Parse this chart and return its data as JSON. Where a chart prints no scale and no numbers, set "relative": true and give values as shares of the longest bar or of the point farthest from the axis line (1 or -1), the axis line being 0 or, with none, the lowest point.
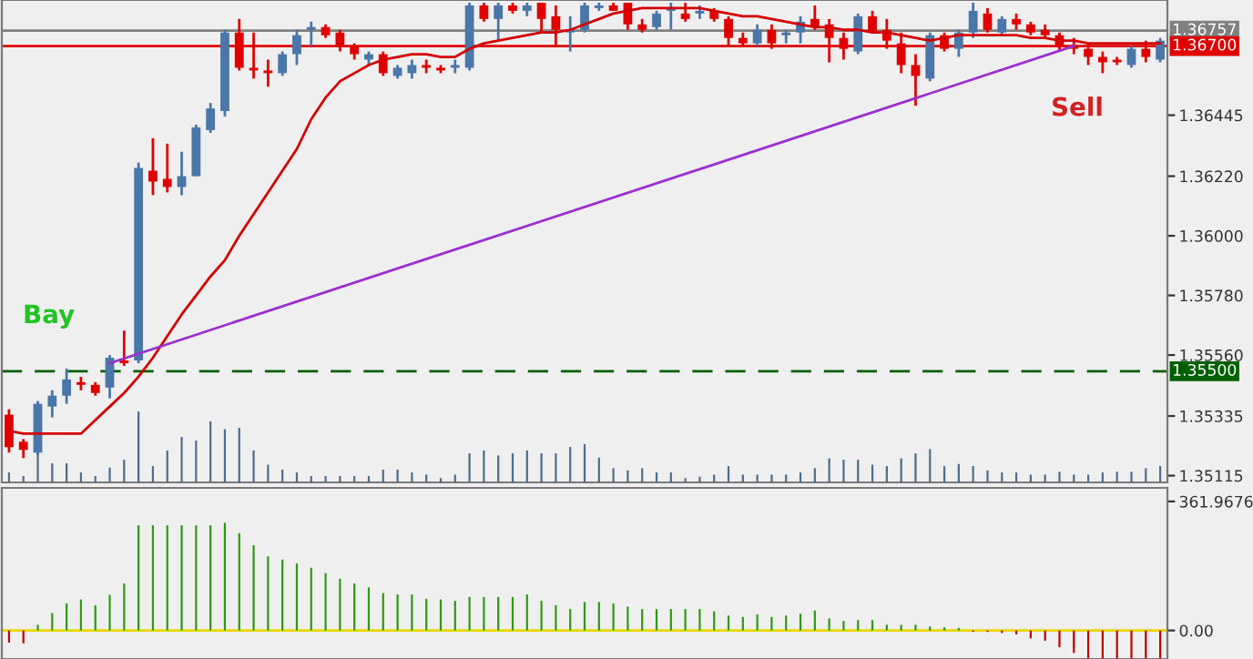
{
  "chart_data": [
    {
      "type": "candlestick",
      "categories": [
        null,
        null,
        null,
        null,
        null,
        null,
        null,
        null,
        null,
        null,
        null,
        null,
        null,
        null,
        null,
        null,
        null,
        null,
        null,
        null,
        null,
        null,
        null,
        null,
        null,
        null,
        null,
        null,
        null,
        null,
        null,
        null,
        null,
        null,
        null,
        null,
        null,
        null,
        null,
        null,
        null,
        null,
        null,
        null,
        null,
        null,
        null,
        null,
        null,
        null,
        null,
        null,
        null,
        null,
        null,
        null,
        null,
        null,
        null,
        null,
        null,
        null,
        null,
        null,
        null,
        null,
        null,
        null,
        null,
        null,
        null,
        null,
        null,
        null,
        null,
        null,
        null,
        null,
        null,
        null,
        null
      ],
      "ohlc": [
        [
          1.3534,
          1.3536,
          1.352,
          1.3522
        ],
        [
          1.3524,
          1.3525,
          1.3518,
          1.3521
        ],
        [
          1.352,
          1.3539,
          1.3519,
          1.3538
        ],
        [
          1.3537,
          1.3543,
          1.3533,
          1.3541
        ],
        [
          1.3541,
          1.3551,
          1.3538,
          1.3547
        ],
        [
          1.3546,
          1.3548,
          1.3543,
          1.3545
        ],
        [
          1.3545,
          1.3546,
          1.3541,
          1.3542
        ],
        [
          1.3544,
          1.3556,
          1.354,
          1.3555
        ],
        [
          1.3554,
          1.3565,
          1.3552,
          1.3553
        ],
        [
          1.3554,
          1.3627,
          1.3553,
          1.3625
        ],
        [
          1.3624,
          1.3636,
          1.3615,
          1.362
        ],
        [
          1.3621,
          1.3634,
          1.3616,
          1.3618
        ],
        [
          1.3618,
          1.3631,
          1.3615,
          1.3622
        ],
        [
          1.3622,
          1.3641,
          1.3622,
          1.364
        ],
        [
          1.3639,
          1.3649,
          1.3638,
          1.3647
        ],
        [
          1.3646,
          1.3676,
          1.3644,
          1.3675
        ],
        [
          1.3675,
          1.368,
          1.3661,
          1.3662
        ],
        [
          1.3662,
          1.3675,
          1.3658,
          1.3661
        ],
        [
          1.3661,
          1.3665,
          1.3655,
          1.366
        ],
        [
          1.366,
          1.3668,
          1.3659,
          1.3667
        ],
        [
          1.3667,
          1.3676,
          1.3663,
          1.3674
        ],
        [
          1.3676,
          1.3679,
          1.367,
          1.3677
        ],
        [
          1.3677,
          1.3678,
          1.3673,
          1.3674
        ],
        [
          1.3675,
          1.3676,
          1.3668,
          1.367
        ],
        [
          1.367,
          1.3671,
          1.3665,
          1.3667
        ],
        [
          1.3665,
          1.3668,
          1.3663,
          1.3667
        ],
        [
          1.3667,
          1.3668,
          1.3659,
          1.366
        ],
        [
          1.3659,
          1.3663,
          1.3658,
          1.3662
        ],
        [
          1.366,
          1.3665,
          1.3658,
          1.3663
        ],
        [
          1.3663,
          1.3665,
          1.366,
          1.3662
        ],
        [
          1.3662,
          1.3663,
          1.366,
          1.3661
        ],
        [
          1.3662,
          1.3665,
          1.366,
          1.3663
        ],
        [
          1.3662,
          1.3686,
          1.3661,
          1.3685
        ],
        [
          1.3685,
          1.3686,
          1.3679,
          1.368
        ],
        [
          1.368,
          1.3686,
          1.3672,
          1.3685
        ],
        [
          1.3685,
          1.3686,
          1.3682,
          1.3683
        ],
        [
          1.3683,
          1.3686,
          1.3681,
          1.3685
        ],
        [
          1.3686,
          1.3686,
          1.3675,
          1.368
        ],
        [
          1.3681,
          1.3685,
          1.367,
          1.3676
        ],
        [
          1.3675,
          1.3681,
          1.3668,
          1.3676
        ],
        [
          1.3676,
          1.3686,
          1.3675,
          1.3685
        ],
        [
          1.3684,
          1.3686,
          1.3683,
          1.3685
        ],
        [
          1.3685,
          1.3686,
          1.3683,
          1.3683
        ],
        [
          1.3686,
          1.3686,
          1.3676,
          1.3678
        ],
        [
          1.3678,
          1.368,
          1.3675,
          1.3676
        ],
        [
          1.3677,
          1.3683,
          1.3676,
          1.3682
        ],
        [
          1.3683,
          1.3686,
          1.3676,
          1.3684
        ],
        [
          1.3682,
          1.3686,
          1.3679,
          1.368
        ],
        [
          1.3682,
          1.3685,
          1.368,
          1.3683
        ],
        [
          1.3683,
          1.3684,
          1.3679,
          1.368
        ],
        [
          1.368,
          1.3681,
          1.367,
          1.3673
        ],
        [
          1.3673,
          1.3675,
          1.367,
          1.3671
        ],
        [
          1.3671,
          1.3678,
          1.367,
          1.3676
        ],
        [
          1.3676,
          1.3678,
          1.3669,
          1.3671
        ],
        [
          1.3674,
          1.3676,
          1.3671,
          1.3675
        ],
        [
          1.3675,
          1.3681,
          1.3671,
          1.3679
        ],
        [
          1.368,
          1.3685,
          1.3676,
          1.3677
        ],
        [
          1.3678,
          1.368,
          1.3664,
          1.3673
        ],
        [
          1.3673,
          1.3675,
          1.3665,
          1.3669
        ],
        [
          1.3668,
          1.3682,
          1.3667,
          1.3681
        ],
        [
          1.3681,
          1.3683,
          1.3675,
          1.3675
        ],
        [
          1.3676,
          1.368,
          1.3669,
          1.3672
        ],
        [
          1.3671,
          1.3675,
          1.366,
          1.3663
        ],
        [
          1.3663,
          1.3667,
          1.3648,
          1.3659
        ],
        [
          1.3658,
          1.3675,
          1.3657,
          1.3674
        ],
        [
          1.3674,
          1.3675,
          1.3668,
          1.3669
        ],
        [
          1.3669,
          1.3676,
          1.3666,
          1.3675
        ],
        [
          1.3675,
          1.3686,
          1.3673,
          1.3683
        ],
        [
          1.3682,
          1.3684,
          1.3675,
          1.3676
        ],
        [
          1.3675,
          1.3681,
          1.3674,
          1.368
        ],
        [
          1.368,
          1.3682,
          1.3676,
          1.3678
        ],
        [
          1.3678,
          1.3679,
          1.3674,
          1.3675
        ],
        [
          1.3676,
          1.3678,
          1.3673,
          1.3674
        ],
        [
          1.3674,
          1.3675,
          1.3668,
          1.367
        ],
        [
          1.367,
          1.3673,
          1.3667,
          1.3669
        ],
        [
          1.3669,
          1.3671,
          1.3663,
          1.3666
        ],
        [
          1.3666,
          1.3668,
          1.366,
          1.3664
        ],
        [
          1.3665,
          1.3666,
          1.3663,
          1.3664
        ],
        [
          1.3663,
          1.367,
          1.3662,
          1.3669
        ],
        [
          1.3669,
          1.3672,
          1.3664,
          1.3666
        ],
        [
          1.3665,
          1.3673,
          1.3664,
          1.3672
        ]
      ],
      "colors": [
        "#e00000",
        "#e00000",
        "#4a76a8",
        "#4a76a8",
        "#4a76a8",
        "#e00000",
        "#e00000",
        "#4a76a8",
        "#e00000",
        "#4a76a8",
        "#e00000",
        "#e00000",
        "#4a76a8",
        "#4a76a8",
        "#4a76a8",
        "#4a76a8",
        "#e00000",
        "#e00000",
        "#e00000",
        "#4a76a8",
        "#4a76a8",
        "#4a76a8",
        "#e00000",
        "#e00000",
        "#e00000",
        "#4a76a8",
        "#e00000",
        "#4a76a8",
        "#4a76a8",
        "#e00000",
        "#e00000",
        "#4a76a8",
        "#4a76a8",
        "#e00000",
        "#4a76a8",
        "#e00000",
        "#4a76a8",
        "#e00000",
        "#e00000",
        "#4a76a8",
        "#4a76a8",
        "#4a76a8",
        "#e00000",
        "#e00000",
        "#e00000",
        "#4a76a8",
        "#4a76a8",
        "#e00000",
        "#4a76a8",
        "#e00000",
        "#e00000",
        "#e00000",
        "#4a76a8",
        "#e00000",
        "#4a76a8",
        "#4a76a8",
        "#e00000",
        "#e00000",
        "#e00000",
        "#4a76a8",
        "#e00000",
        "#e00000",
        "#e00000",
        "#e00000",
        "#4a76a8",
        "#e00000",
        "#4a76a8",
        "#4a76a8",
        "#e00000",
        "#4a76a8",
        "#e00000",
        "#e00000",
        "#e00000",
        "#e00000",
        "#e00000",
        "#e00000",
        "#e00000",
        "#e00000",
        "#4a76a8",
        "#e00000",
        "#4a76a8"
      ],
      "series": [
        {
          "type": "line",
          "color": "#d40000",
          "values": [
            1.3528,
            1.3527,
            1.3527,
            1.3527,
            1.3527,
            1.3527,
            1.3532,
            1.3537,
            1.3542,
            1.3548,
            1.3555,
            1.3563,
            1.3571,
            1.3578,
            1.3585,
            1.3591,
            1.36,
            1.3608,
            1.3616,
            1.3624,
            1.3632,
            1.3643,
            1.3651,
            1.3657,
            1.366,
            1.3663,
            1.3665,
            1.3666,
            1.3667,
            1.3667,
            1.3666,
            1.3666,
            1.3669,
            1.3671,
            1.3672,
            1.3673,
            1.3674,
            1.3675,
            1.3675,
            1.3676,
            1.3678,
            1.368,
            1.3682,
            1.3683,
            1.3684,
            1.3684,
            1.3684,
            1.3684,
            1.3684,
            1.3683,
            1.3682,
            1.3681,
            1.3681,
            1.368,
            1.3679,
            1.3678,
            1.3677,
            1.3677,
            1.3676,
            1.3676,
            1.3675,
            1.3675,
            1.3674,
            1.3673,
            1.3672,
            1.3673,
            1.3674,
            1.3674,
            1.3674,
            1.3674,
            1.3674,
            1.3673,
            1.3673,
            1.3672,
            1.3672,
            1.3671,
            1.3671,
            1.3671,
            1.3671,
            1.3671,
            1.3671
          ]
        },
        {
          "type": "line",
          "color": "#9b30d0",
          "values": [
            null,
            null,
            null,
            null,
            null,
            null,
            null,
            1.3553,
            null,
            null,
            null,
            null,
            null,
            null,
            null,
            null,
            null,
            null,
            null,
            null,
            null,
            null,
            null,
            null,
            null,
            null,
            null,
            null,
            null,
            null,
            null,
            null,
            null,
            null,
            null,
            null,
            null,
            null,
            null,
            null,
            null,
            null,
            null,
            null,
            null,
            null,
            null,
            null,
            null,
            null,
            null,
            null,
            null,
            null,
            null,
            null,
            null,
            null,
            null,
            null,
            null,
            null,
            null,
            null,
            null,
            null,
            null,
            null,
            null,
            null,
            null,
            null,
            null,
            null,
            1.367,
            null,
            null,
            null,
            null,
            null,
            null
          ]
        }
      ],
      "ylim": [
        1.3509,
        1.3687
      ],
      "yticks": [
        {
          "value": 1.35115,
          "label": "1.35115"
        },
        {
          "value": 1.35335,
          "label": "1.35335"
        },
        {
          "value": 1.3556,
          "label": "1.35560"
        },
        {
          "value": 1.3578,
          "label": "1.35780"
        },
        {
          "value": 1.36,
          "label": "1.36000"
        },
        {
          "value": 1.3622,
          "label": "1.36220"
        },
        {
          "value": 1.36445,
          "label": "1.36445"
        }
      ],
      "ref_lines": [
        {
          "axis": "y",
          "value": 1.36757,
          "label": "1.36757",
          "color": "#808080",
          "line_style": "solid"
        },
        {
          "axis": "y",
          "value": 1.367,
          "label": "1.36700",
          "color": "#e00000",
          "line_style": "solid"
        },
        {
          "axis": "y",
          "value": 1.355,
          "label": "1.35500",
          "color": "#006000",
          "line_style": "dashed"
        }
      ],
      "annotations": [
        "Bay",
        "Sell"
      ],
      "tick_labels": "y"
    },
    {
      "type": "bar",
      "relative": true,
      "color": "#4d6d8d",
      "categories": [
        null,
        null,
        null,
        null,
        null,
        null,
        null,
        null,
        null,
        null,
        null,
        null,
        null,
        null,
        null,
        null,
        null,
        null,
        null,
        null,
        null,
        null,
        null,
        null,
        null,
        null,
        null,
        null,
        null,
        null,
        null,
        null,
        null,
        null,
        null,
        null,
        null,
        null,
        null,
        null,
        null,
        null,
        null,
        null,
        null,
        null,
        null,
        null,
        null,
        null,
        null,
        null,
        null,
        null,
        null,
        null,
        null,
        null,
        null,
        null,
        null,
        null,
        null,
        null,
        null,
        null,
        null,
        null,
        null,
        null,
        null,
        null,
        null,
        null,
        null,
        null,
        null,
        null,
        null,
        null,
        null
      ],
      "values": [
        0.14,
        0.09,
        0.41,
        0.27,
        0.27,
        0.14,
        0.09,
        0.21,
        0.32,
        1,
        0.23,
        0.45,
        0.64,
        0.59,
        0.86,
        0.75,
        0.77,
        0.45,
        0.25,
        0.18,
        0.14,
        0.09,
        0.09,
        0.09,
        0.09,
        0.09,
        0.18,
        0.18,
        0.14,
        0.11,
        0.06,
        0.11,
        0.41,
        0.45,
        0.38,
        0.41,
        0.45,
        0.41,
        0.41,
        0.5,
        0.54,
        0.35,
        0.2,
        0.17,
        0.2,
        0.14,
        0.14,
        0.06,
        0.08,
        0.11,
        0.23,
        0.11,
        0.11,
        0.11,
        0.11,
        0.14,
        0.2,
        0.34,
        0.32,
        0.32,
        0.25,
        0.23,
        0.34,
        0.41,
        0.47,
        0.23,
        0.26,
        0.23,
        0.17,
        0.14,
        0.14,
        0.11,
        0.11,
        0.15,
        0.11,
        0.11,
        0.14,
        0.15,
        0.15,
        0.2,
        0.23
      ],
      "tick_labels": false
    },
    {
      "type": "bar",
      "categories": [
        null,
        null,
        null,
        null,
        null,
        null,
        null,
        null,
        null,
        null,
        null,
        null,
        null,
        null,
        null,
        null,
        null,
        null,
        null,
        null,
        null,
        null,
        null,
        null,
        null,
        null,
        null,
        null,
        null,
        null,
        null,
        null,
        null,
        null,
        null,
        null,
        null,
        null,
        null,
        null,
        null,
        null,
        null,
        null,
        null,
        null,
        null,
        null,
        null,
        null,
        null,
        null,
        null,
        null,
        null,
        null,
        null,
        null,
        null,
        null,
        null,
        null,
        null,
        null,
        null,
        null,
        null,
        null,
        null,
        null,
        null,
        null,
        null,
        null,
        null,
        null,
        null,
        null,
        null,
        null,
        null
      ],
      "values": [
        -34,
        -36,
        16,
        49,
        76,
        87,
        71,
        100,
        132,
        295,
        295,
        295,
        295,
        295,
        295,
        302,
        273,
        239,
        208,
        199,
        188,
        176,
        161,
        145,
        132,
        121,
        105,
        101,
        101,
        89,
        87,
        83,
        94,
        94,
        94,
        94,
        101,
        83,
        71,
        60,
        80,
        80,
        76,
        67,
        60,
        60,
        60,
        60,
        60,
        54,
        42,
        38,
        45,
        38,
        42,
        47,
        56,
        34,
        27,
        29,
        29,
        16,
        16,
        16,
        11,
        9,
        7,
        -4,
        -4,
        -7,
        -11,
        -22,
        -29,
        -47,
        -63,
        -78,
        -78,
        -78,
        -78,
        -78,
        -78
      ],
      "colors": [
        "#c00000",
        "#c00000",
        "#2e9a10",
        "#2e9a10",
        "#2e9a10",
        "#2e9a10",
        "#2e9a10",
        "#2e9a10",
        "#2e9a10",
        "#2e9a10",
        "#2e9a10",
        "#2e9a10",
        "#2e9a10",
        "#2e9a10",
        "#2e9a10",
        "#2e9a10",
        "#2e9a10",
        "#2e9a10",
        "#2e9a10",
        "#2e9a10",
        "#2e9a10",
        "#2e9a10",
        "#2e9a10",
        "#2e9a10",
        "#2e9a10",
        "#2e9a10",
        "#2e9a10",
        "#2e9a10",
        "#2e9a10",
        "#2e9a10",
        "#2e9a10",
        "#2e9a10",
        "#2e9a10",
        "#2e9a10",
        "#2e9a10",
        "#2e9a10",
        "#2e9a10",
        "#2e9a10",
        "#2e9a10",
        "#2e9a10",
        "#2e9a10",
        "#2e9a10",
        "#2e9a10",
        "#2e9a10",
        "#2e9a10",
        "#2e9a10",
        "#2e9a10",
        "#2e9a10",
        "#2e9a10",
        "#2e9a10",
        "#2e9a10",
        "#2e9a10",
        "#2e9a10",
        "#2e9a10",
        "#2e9a10",
        "#2e9a10",
        "#2e9a10",
        "#2e9a10",
        "#2e9a10",
        "#2e9a10",
        "#2e9a10",
        "#2e9a10",
        "#2e9a10",
        "#2e9a10",
        "#2e9a10",
        "#2e9a10",
        "#2e9a10",
        "#c00000",
        "#c00000",
        "#c00000",
        "#c00000",
        "#c00000",
        "#c00000",
        "#c00000",
        "#c00000",
        "#c00000",
        "#c00000",
        "#c00000",
        "#c00000",
        "#c00000",
        "#c00000"
      ],
      "ylim": [
        -80,
        400
      ],
      "yticks": [
        {
          "value": 0,
          "label": "0.00"
        },
        361.9676
      ],
      "ref_lines": [
        {
          "axis": "y",
          "value": 0,
          "color": "#e8d800",
          "line_style": "solid"
        }
      ],
      "tick_labels": "y"
    }
  ]
}
